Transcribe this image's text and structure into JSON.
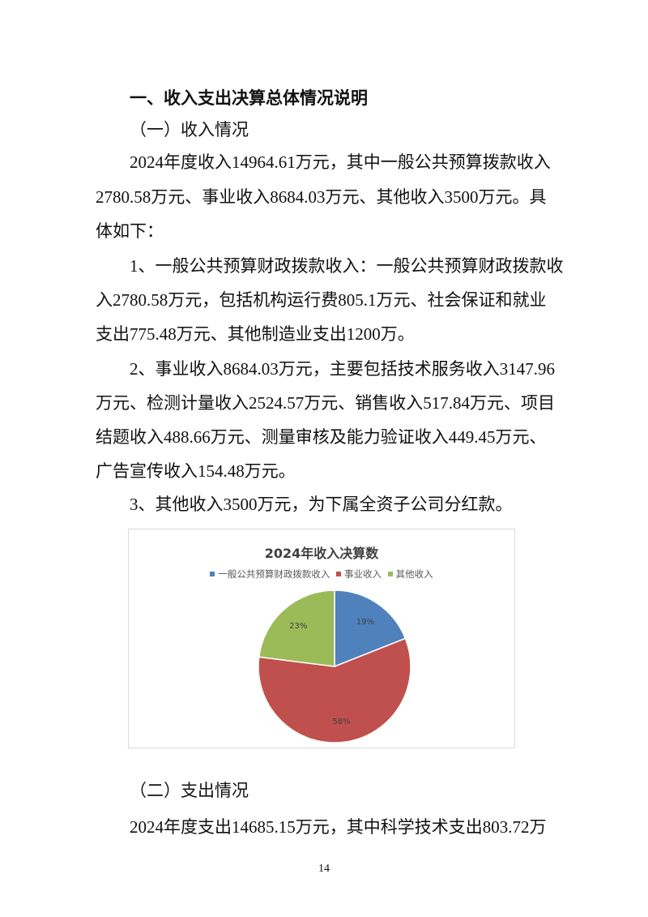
{
  "heading": "一、收入支出决算总体情况说明",
  "section1": {
    "title": "（一）收入情况",
    "p1": [
      "2024年度收入14964.61万元，其中一般公共预算拨款收入",
      "2780.58万元、事业收入8684.03万元、其他收入3500万元。具",
      "体如下："
    ],
    "p2": [
      "1、一般公共预算财政拨款收入：一般公共预算财政拨款收",
      "入2780.58万元，包括机构运行费805.1万元、社会保证和就业",
      "支出775.48万元、其他制造业支出1200万。"
    ],
    "p3": [
      "2、事业收入8684.03万元，主要包括技术服务收入3147.96",
      "万元、检测计量收入2524.57万元、销售收入517.84万元、项目",
      "结题收入488.66万元、测量审核及能力验证收入449.45万元、",
      "广告宣传收入154.48万元。"
    ],
    "p4": [
      "3、其他收入3500万元，为下属全资子公司分红款。"
    ]
  },
  "chart_data": {
    "type": "pie",
    "title": "2024年收入决算数",
    "legend_position": "top",
    "categories": [
      "一般公共预算财政拨款收入",
      "事业收入",
      "其他收入"
    ],
    "values": [
      19,
      58,
      23
    ],
    "labels": [
      "19%",
      "58%",
      "23%"
    ],
    "colors": [
      "#4F81BD",
      "#C0504D",
      "#9BBB59"
    ]
  },
  "section2": {
    "title": "（二）支出情况",
    "p1": [
      "2024年度支出14685.15万元，其中科学技术支出803.72万"
    ]
  },
  "page_number": "14"
}
